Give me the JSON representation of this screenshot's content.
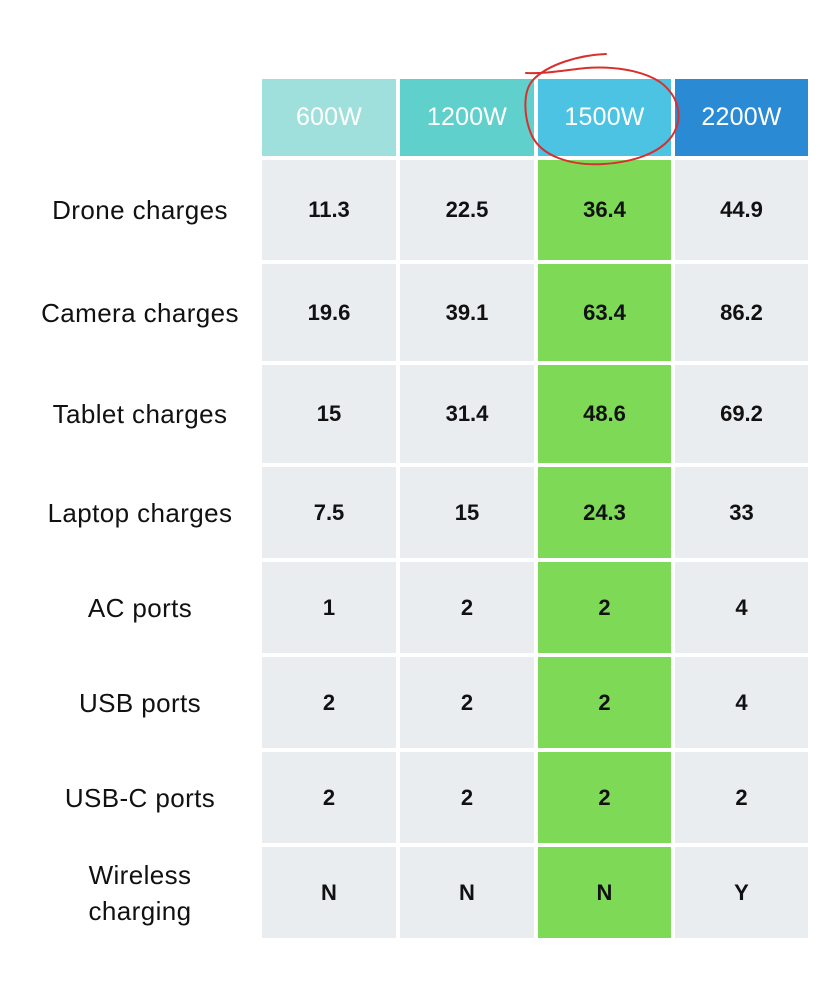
{
  "colors": {
    "header_600w": "#9fe0dc",
    "header_1200w": "#5fd0cb",
    "header_1500w": "#4cc3e2",
    "header_2200w": "#2b8ad4",
    "cell_background": "#eaedf0",
    "highlight_column": "#7ed957",
    "annotation_circle": "#d8302e"
  },
  "annotation": {
    "icon": "hand-drawn-circle",
    "circled_column": "1500W"
  },
  "table": {
    "headers": [
      "600W",
      "1200W",
      "1500W",
      "2200W"
    ],
    "highlighted_column_index": 2,
    "rows": [
      {
        "label": "Drone charges",
        "values": [
          "11.3",
          "22.5",
          "36.4",
          "44.9"
        ]
      },
      {
        "label": "Camera charges",
        "values": [
          "19.6",
          "39.1",
          "63.4",
          "86.2"
        ]
      },
      {
        "label": "Tablet charges",
        "values": [
          "15",
          "31.4",
          "48.6",
          "69.2"
        ]
      },
      {
        "label": "Laptop charges",
        "values": [
          "7.5",
          "15",
          "24.3",
          "33"
        ]
      },
      {
        "label": "AC ports",
        "values": [
          "1",
          "2",
          "2",
          "4"
        ]
      },
      {
        "label": "USB ports",
        "values": [
          "2",
          "2",
          "2",
          "4"
        ]
      },
      {
        "label": "USB-C ports",
        "values": [
          "2",
          "2",
          "2",
          "2"
        ]
      },
      {
        "label": "Wireless charging",
        "values": [
          "N",
          "N",
          "N",
          "Y"
        ]
      }
    ]
  }
}
